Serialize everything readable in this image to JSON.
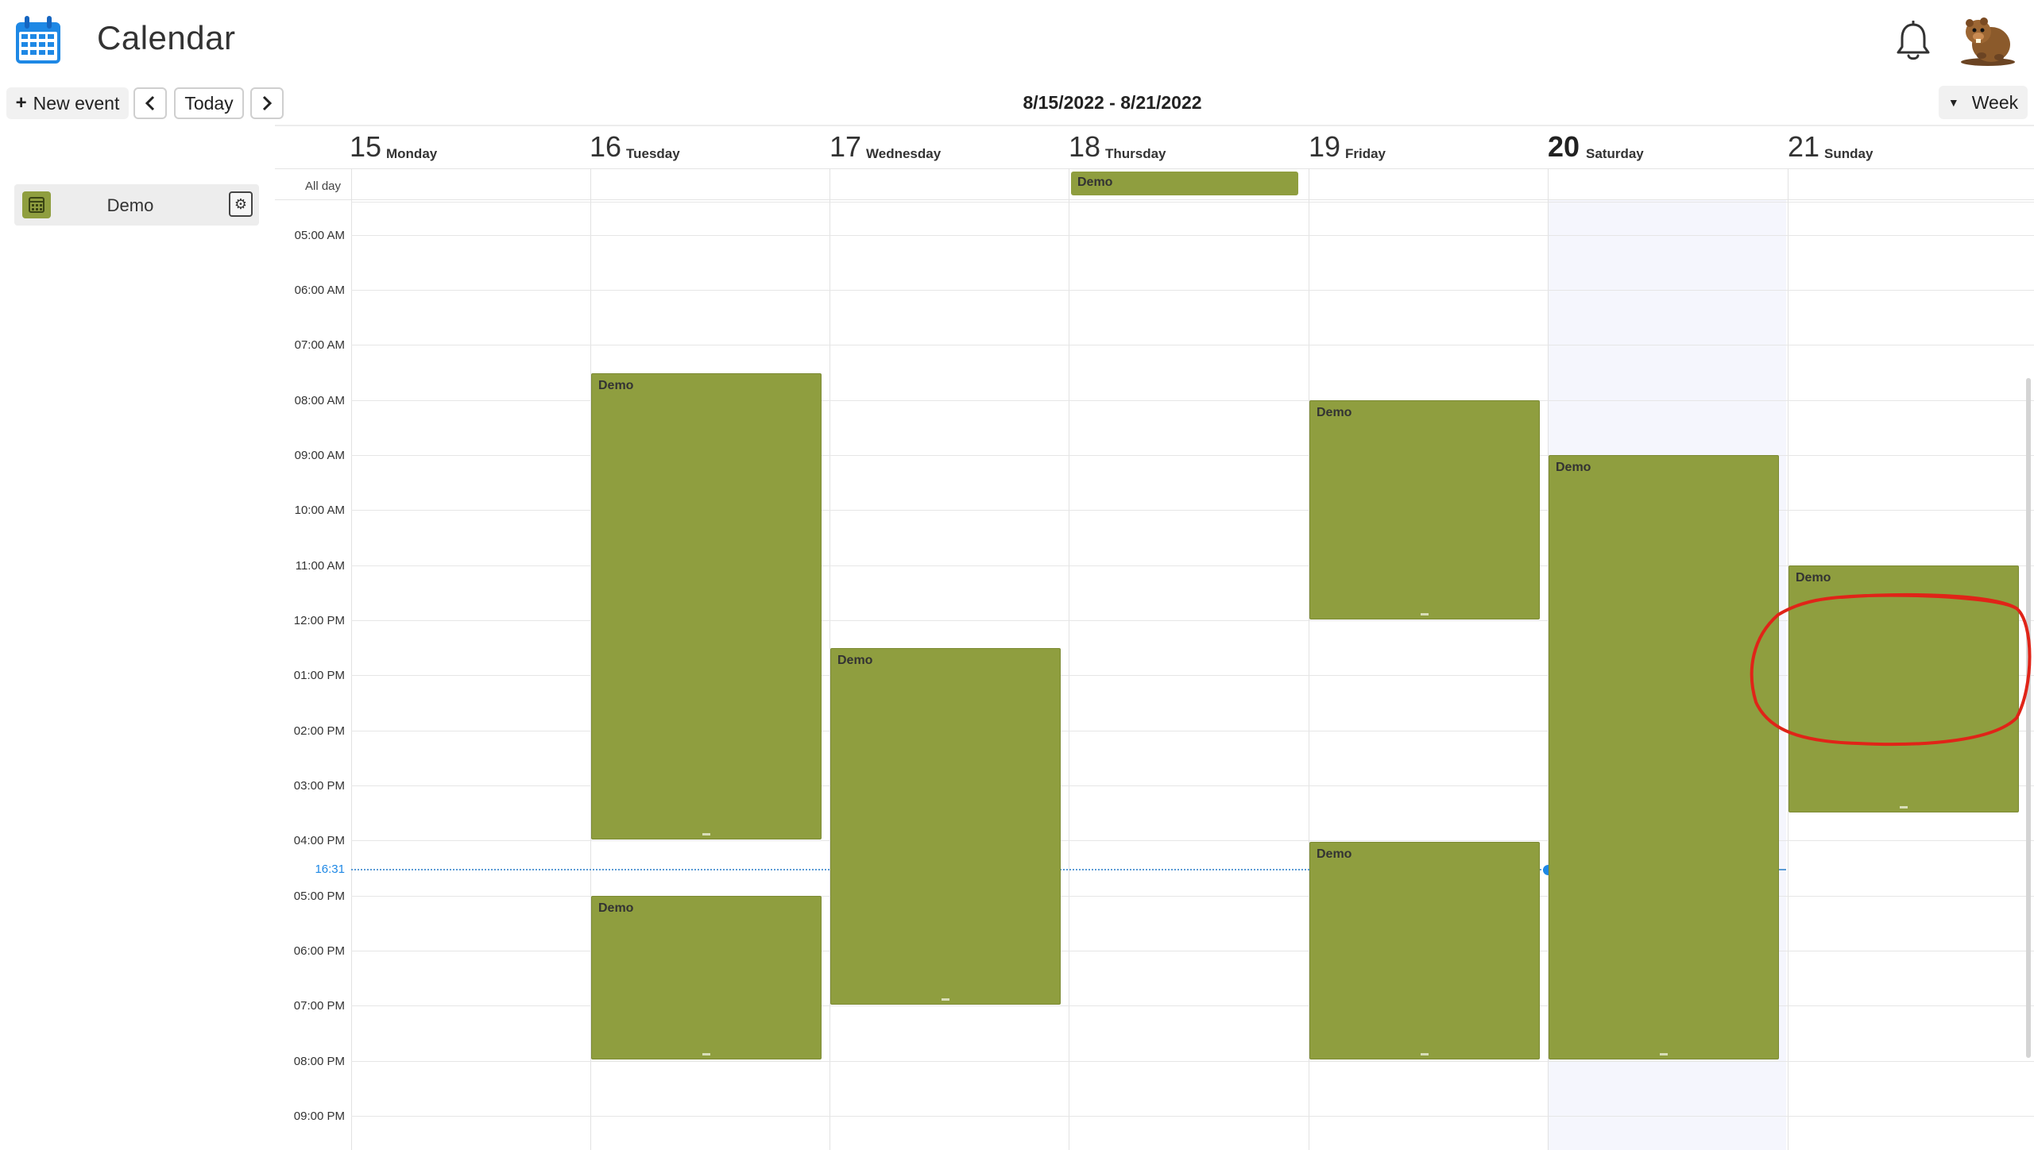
{
  "app": {
    "title": "Calendar"
  },
  "icons": {
    "logo": "calendar-icon",
    "notifications": "bell-icon",
    "avatar": "beaver-avatar",
    "calendar_swatch": "calendar-icon",
    "calendar_settings": "gear-icon"
  },
  "toolbar": {
    "new_event": "New event",
    "today": "Today",
    "prev": "‹",
    "next": "›",
    "range": "8/15/2022 - 8/21/2022",
    "view": "Week"
  },
  "sidebar": {
    "calendars": [
      {
        "name": "Demo",
        "color": "#8f9e3f"
      }
    ]
  },
  "week": {
    "allday_label": "All day",
    "days": [
      {
        "num": "15",
        "name": "Monday"
      },
      {
        "num": "16",
        "name": "Tuesday"
      },
      {
        "num": "17",
        "name": "Wednesday"
      },
      {
        "num": "18",
        "name": "Thursday"
      },
      {
        "num": "19",
        "name": "Friday"
      },
      {
        "num": "20",
        "name": "Saturday",
        "today": true
      },
      {
        "num": "21",
        "name": "Sunday"
      }
    ],
    "hours": [
      "05:00 AM",
      "06:00 AM",
      "07:00 AM",
      "08:00 AM",
      "09:00 AM",
      "10:00 AM",
      "11:00 AM",
      "12:00 PM",
      "01:00 PM",
      "02:00 PM",
      "03:00 PM",
      "04:00 PM",
      "05:00 PM",
      "06:00 PM",
      "07:00 PM",
      "08:00 PM",
      "09:00 PM"
    ],
    "now": "16:31",
    "allday_events": [
      {
        "title": "Demo",
        "day": "18"
      }
    ],
    "events": [
      {
        "title": "Demo",
        "day": "16",
        "start": "07:30",
        "end": "16:00"
      },
      {
        "title": "Demo",
        "day": "16",
        "start": "17:00",
        "end": "20:00"
      },
      {
        "title": "Demo",
        "day": "17",
        "start": "12:30",
        "end": "19:00"
      },
      {
        "title": "Demo",
        "day": "19",
        "start": "08:00",
        "end": "12:00"
      },
      {
        "title": "Demo",
        "day": "19",
        "start": "16:00",
        "end": "20:00"
      },
      {
        "title": "Demo",
        "day": "20",
        "start": "09:00",
        "end": "20:00"
      },
      {
        "title": "Demo",
        "day": "21",
        "start": "11:00",
        "end": "15:30"
      }
    ]
  },
  "colors": {
    "event": "#8f9e3f",
    "now_line": "#1e88e5",
    "today_column": "#f5f6fd",
    "annotation": "#e02418"
  }
}
